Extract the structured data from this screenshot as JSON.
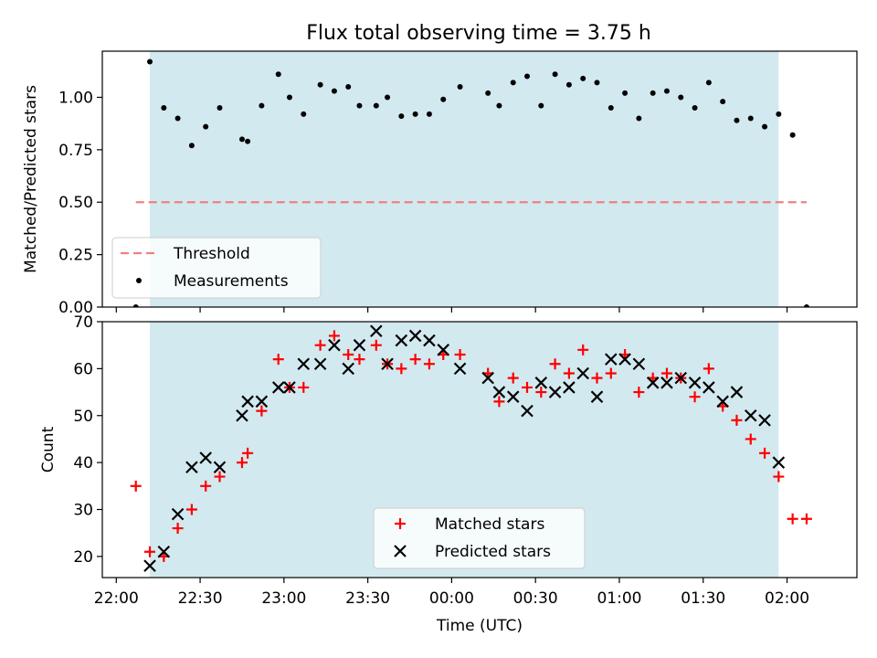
{
  "title": "Flux total observing time = 3.75 h",
  "colors": {
    "band": "#d3e9f0",
    "threshold": "#f08080",
    "matched": "#ff0000",
    "predicted": "#000000"
  },
  "chart_data": [
    {
      "type": "scatter",
      "ylabel": "Matched/Predicted stars",
      "xlabel": "",
      "x_unit": "minutes after 22:00",
      "xlim": [
        -5,
        265
      ],
      "ylim": [
        0,
        1.22
      ],
      "yticks": [
        "0.00",
        "0.25",
        "0.50",
        "0.75",
        "1.00"
      ],
      "ytick_values": [
        0,
        0.25,
        0.5,
        0.75,
        1.0
      ],
      "band": [
        12,
        237
      ],
      "threshold": {
        "label": "Threshold",
        "y": 0.5,
        "x": [
          7,
          247
        ]
      },
      "legend": {
        "position": "lower-left",
        "entries": [
          "Threshold",
          "Measurements"
        ]
      },
      "series": [
        {
          "name": "Measurements",
          "x": [
            7,
            12,
            17,
            22,
            27,
            32,
            37,
            45,
            47,
            52,
            58,
            62,
            67,
            73,
            78,
            83,
            87,
            93,
            97,
            102,
            107,
            112,
            117,
            123,
            133,
            137,
            142,
            147,
            152,
            157,
            162,
            167,
            172,
            177,
            182,
            187,
            192,
            197,
            202,
            207,
            212,
            217,
            222,
            227,
            232,
            237,
            242,
            247
          ],
          "values": [
            0.0,
            1.17,
            0.95,
            0.9,
            0.77,
            0.86,
            0.95,
            0.8,
            0.79,
            0.96,
            1.11,
            1.0,
            0.92,
            1.06,
            1.03,
            1.05,
            0.96,
            0.96,
            1.0,
            0.91,
            0.92,
            0.92,
            0.99,
            1.05,
            1.02,
            0.96,
            1.07,
            1.1,
            0.96,
            1.11,
            1.06,
            1.09,
            1.07,
            0.95,
            1.02,
            0.9,
            1.02,
            1.03,
            1.0,
            0.95,
            1.07,
            0.98,
            0.89,
            0.9,
            0.86,
            0.92,
            0.82,
            0.0
          ]
        }
      ]
    },
    {
      "type": "scatter",
      "ylabel": "Count",
      "xlabel": "Time (UTC)",
      "x_unit": "minutes after 22:00",
      "xlim": [
        -5,
        265
      ],
      "ylim": [
        15.5,
        70
      ],
      "yticks": [
        "20",
        "30",
        "40",
        "50",
        "60",
        "70"
      ],
      "ytick_values": [
        20,
        30,
        40,
        50,
        60,
        70
      ],
      "xticks": [
        "22:00",
        "22:30",
        "23:00",
        "23:30",
        "00:00",
        "00:30",
        "01:00",
        "01:30",
        "02:00"
      ],
      "xtick_values": [
        0,
        30,
        60,
        90,
        120,
        150,
        180,
        210,
        240
      ],
      "band": [
        12,
        237
      ],
      "legend": {
        "position": "lower-center",
        "entries": [
          "Matched stars",
          "Predicted stars"
        ]
      },
      "series": [
        {
          "name": "Matched stars",
          "marker": "plus",
          "x": [
            7,
            12,
            17,
            22,
            27,
            32,
            37,
            45,
            47,
            52,
            58,
            62,
            67,
            73,
            78,
            83,
            87,
            93,
            97,
            102,
            107,
            112,
            117,
            123,
            133,
            137,
            142,
            147,
            152,
            157,
            162,
            167,
            172,
            177,
            182,
            187,
            192,
            197,
            202,
            207,
            212,
            217,
            222,
            227,
            232,
            237,
            242,
            247
          ],
          "values": [
            35,
            21,
            20,
            26,
            30,
            35,
            37,
            40,
            42,
            51,
            62,
            56,
            56,
            65,
            67,
            63,
            62,
            65,
            61,
            60,
            62,
            61,
            63,
            63,
            59,
            53,
            58,
            56,
            55,
            61,
            59,
            64,
            58,
            59,
            63,
            55,
            58,
            59,
            58,
            54,
            60,
            52,
            49,
            45,
            42,
            37,
            28,
            28
          ]
        },
        {
          "name": "Predicted stars",
          "marker": "x",
          "x": [
            12,
            17,
            22,
            27,
            32,
            37,
            45,
            47,
            52,
            58,
            62,
            67,
            73,
            78,
            83,
            87,
            93,
            97,
            102,
            107,
            112,
            117,
            123,
            133,
            137,
            142,
            147,
            152,
            157,
            162,
            167,
            172,
            177,
            182,
            187,
            192,
            197,
            202,
            207,
            212,
            217,
            222,
            227,
            232,
            237
          ],
          "values": [
            18,
            21,
            29,
            39,
            41,
            39,
            50,
            53,
            53,
            56,
            56,
            61,
            61,
            65,
            60,
            65,
            68,
            61,
            66,
            67,
            66,
            64,
            60,
            58,
            55,
            54,
            51,
            57,
            55,
            56,
            59,
            54,
            62,
            62,
            61,
            57,
            57,
            58,
            57,
            56,
            53,
            55,
            50,
            49,
            40
          ]
        }
      ]
    }
  ]
}
